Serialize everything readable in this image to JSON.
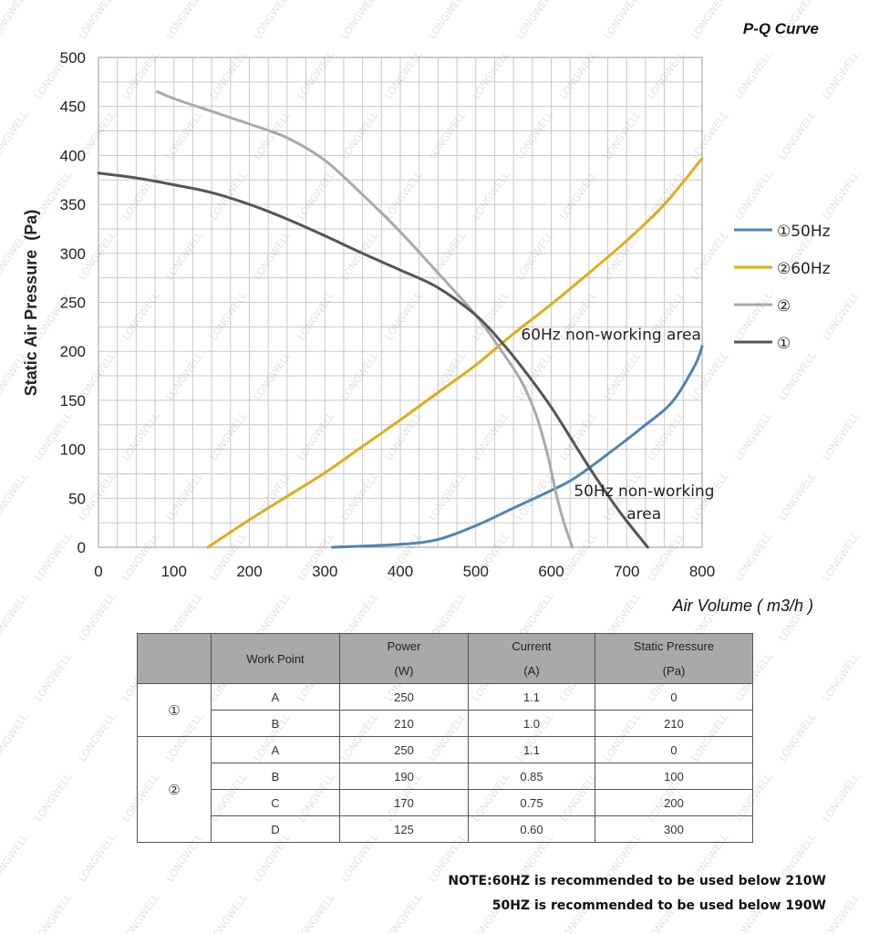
{
  "chart_data": {
    "type": "line",
    "title": "P-Q Curve",
    "xlabel": "Air Volume ( m3/h )",
    "ylabel": "Static Air Pressure  (Pa)",
    "xlim": [
      0,
      800
    ],
    "ylim": [
      0,
      500
    ],
    "x_ticks": [
      "0",
      "100",
      "200",
      "300",
      "400",
      "500",
      "600",
      "700",
      "800"
    ],
    "y_ticks": [
      "0",
      "50",
      "100",
      "150",
      "200",
      "250",
      "300",
      "350",
      "400",
      "450",
      "500"
    ],
    "grid": true,
    "legend_position": "right",
    "series": [
      {
        "name": "①50Hz",
        "color": "#4f84b6",
        "points": [
          [
            310,
            0
          ],
          [
            400,
            3
          ],
          [
            450,
            8
          ],
          [
            500,
            22
          ],
          [
            550,
            40
          ],
          [
            600,
            58
          ],
          [
            630,
            70
          ],
          [
            680,
            98
          ],
          [
            720,
            122
          ],
          [
            760,
            148
          ],
          [
            790,
            185
          ],
          [
            800,
            205
          ]
        ]
      },
      {
        "name": "②60Hz",
        "color": "#e1ac17",
        "points": [
          [
            145,
            0
          ],
          [
            200,
            28
          ],
          [
            250,
            52
          ],
          [
            300,
            76
          ],
          [
            350,
            103
          ],
          [
            400,
            130
          ],
          [
            450,
            158
          ],
          [
            500,
            186
          ],
          [
            550,
            218
          ],
          [
            600,
            248
          ],
          [
            650,
            280
          ],
          [
            700,
            313
          ],
          [
            750,
            350
          ],
          [
            800,
            397
          ]
        ]
      },
      {
        "name": "②",
        "color": "#aaaaaa",
        "points": [
          [
            78,
            465
          ],
          [
            100,
            458
          ],
          [
            150,
            445
          ],
          [
            200,
            432
          ],
          [
            250,
            418
          ],
          [
            300,
            395
          ],
          [
            350,
            360
          ],
          [
            400,
            322
          ],
          [
            450,
            280
          ],
          [
            500,
            237
          ],
          [
            530,
            205
          ],
          [
            560,
            170
          ],
          [
            580,
            135
          ],
          [
            595,
            95
          ],
          [
            605,
            60
          ],
          [
            615,
            30
          ],
          [
            628,
            0
          ]
        ]
      },
      {
        "name": "①",
        "color": "#555555",
        "points": [
          [
            0,
            382
          ],
          [
            50,
            377
          ],
          [
            100,
            370
          ],
          [
            150,
            362
          ],
          [
            200,
            350
          ],
          [
            250,
            335
          ],
          [
            300,
            318
          ],
          [
            350,
            300
          ],
          [
            400,
            283
          ],
          [
            450,
            265
          ],
          [
            500,
            237
          ],
          [
            530,
            213
          ],
          [
            560,
            185
          ],
          [
            600,
            143
          ],
          [
            650,
            82
          ],
          [
            690,
            37
          ],
          [
            728,
            0
          ]
        ]
      }
    ],
    "annotations": [
      {
        "text": "60Hz non-working area",
        "x": 560,
        "y": 212
      },
      {
        "text": "50Hz non-working",
        "x": 630,
        "y": 52
      },
      {
        "text": "area",
        "x": 700,
        "y": 29
      }
    ]
  },
  "watermark": "LONGWELL",
  "table": {
    "headers": [
      {
        "line1": ""
      },
      {
        "line1": "Work Point"
      },
      {
        "line1": "Power",
        "line2": "(W)"
      },
      {
        "line1": "Current",
        "line2": "(A)"
      },
      {
        "line1": "Static Pressure",
        "line2": "(Pa)"
      }
    ],
    "groups": [
      {
        "label": "①",
        "rows": [
          {
            "point": "A",
            "power": "250",
            "current": "1.1",
            "pressure": "0"
          },
          {
            "point": "B",
            "power": "210",
            "current": "1.0",
            "pressure": "210"
          }
        ]
      },
      {
        "label": "②",
        "rows": [
          {
            "point": "A",
            "power": "250",
            "current": "1.1",
            "pressure": "0"
          },
          {
            "point": "B",
            "power": "190",
            "current": "0.85",
            "pressure": "100"
          },
          {
            "point": "C",
            "power": "170",
            "current": "0.75",
            "pressure": "200"
          },
          {
            "point": "D",
            "power": "125",
            "current": "0.60",
            "pressure": "300"
          }
        ]
      }
    ]
  },
  "notes": {
    "line1": "NOTE:60HZ is recommended to be used below 210W",
    "line2": "50HZ is recommended to be used below 190W"
  }
}
